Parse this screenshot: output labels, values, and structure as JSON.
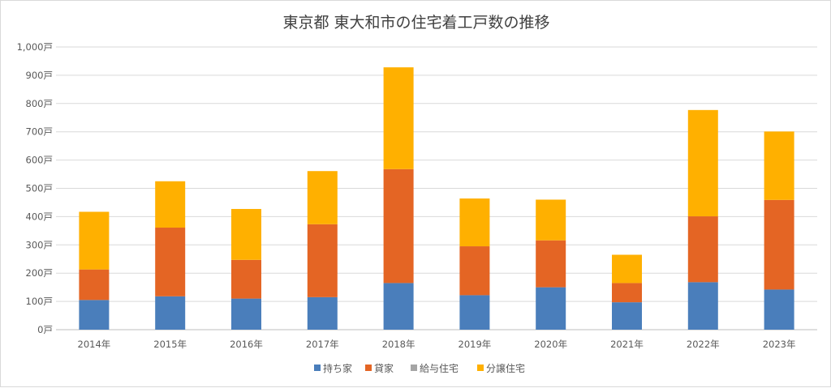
{
  "chart_data": {
    "type": "bar",
    "stacked": true,
    "title": "東京都 東大和市の住宅着工戸数の推移",
    "xlabel": "",
    "ylabel": "",
    "ylim": [
      0,
      1000
    ],
    "y_ticks": [
      0,
      100,
      200,
      300,
      400,
      500,
      600,
      700,
      800,
      900,
      1000
    ],
    "y_tick_labels": [
      "0戸",
      "100戸",
      "200戸",
      "300戸",
      "400戸",
      "500戸",
      "600戸",
      "700戸",
      "800戸",
      "900戸",
      "1,000戸"
    ],
    "categories": [
      "2014年",
      "2015年",
      "2016年",
      "2017年",
      "2018年",
      "2019年",
      "2020年",
      "2021年",
      "2022年",
      "2023年"
    ],
    "series": [
      {
        "name": "持ち家",
        "color": "#4a7ebb",
        "values": [
          105,
          118,
          110,
          115,
          165,
          122,
          150,
          97,
          168,
          142
        ]
      },
      {
        "name": "貸家",
        "color": "#e46524",
        "values": [
          108,
          243,
          137,
          258,
          403,
          173,
          166,
          68,
          233,
          317
        ]
      },
      {
        "name": "給与住宅",
        "color": "#a5a5a5",
        "values": [
          0,
          0,
          0,
          0,
          0,
          0,
          0,
          0,
          0,
          0
        ]
      },
      {
        "name": "分譲住宅",
        "color": "#ffb000",
        "values": [
          204,
          164,
          180,
          188,
          360,
          169,
          144,
          100,
          376,
          242
        ]
      }
    ],
    "grid": true,
    "legend_position": "bottom"
  }
}
